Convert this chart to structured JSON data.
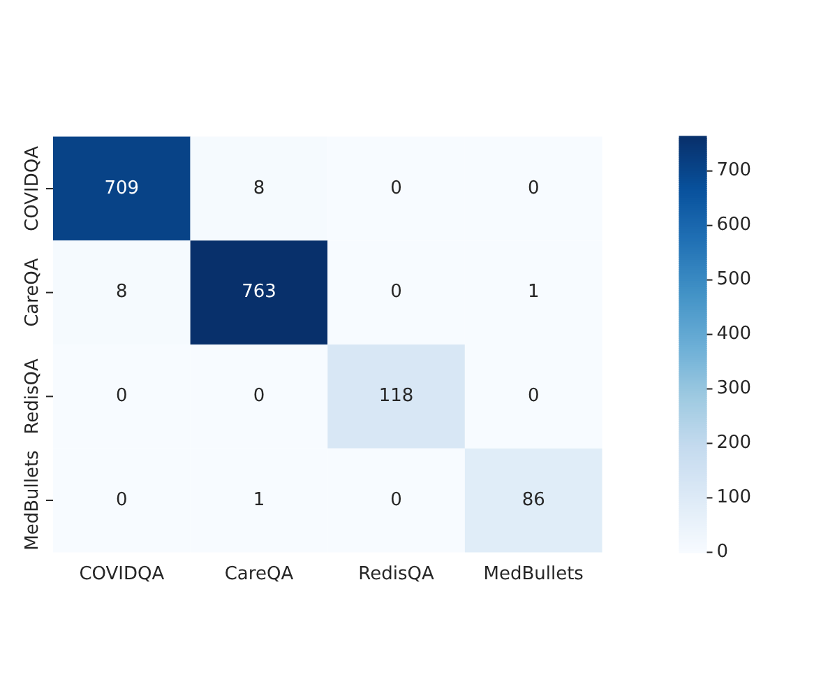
{
  "chart_data": {
    "type": "heatmap",
    "categories": [
      "COVIDQA",
      "CareQA",
      "RedisQA",
      "MedBullets"
    ],
    "y_categories": [
      "COVIDQA",
      "CareQA",
      "RedisQA",
      "MedBullets"
    ],
    "cells": [
      [
        709,
        8,
        0,
        0
      ],
      [
        8,
        763,
        0,
        1
      ],
      [
        0,
        0,
        118,
        0
      ],
      [
        0,
        1,
        0,
        86
      ]
    ],
    "clim": [
      0,
      763
    ],
    "cticks": [
      0,
      100,
      200,
      300,
      400,
      500,
      600,
      700
    ],
    "data_labels": true
  }
}
